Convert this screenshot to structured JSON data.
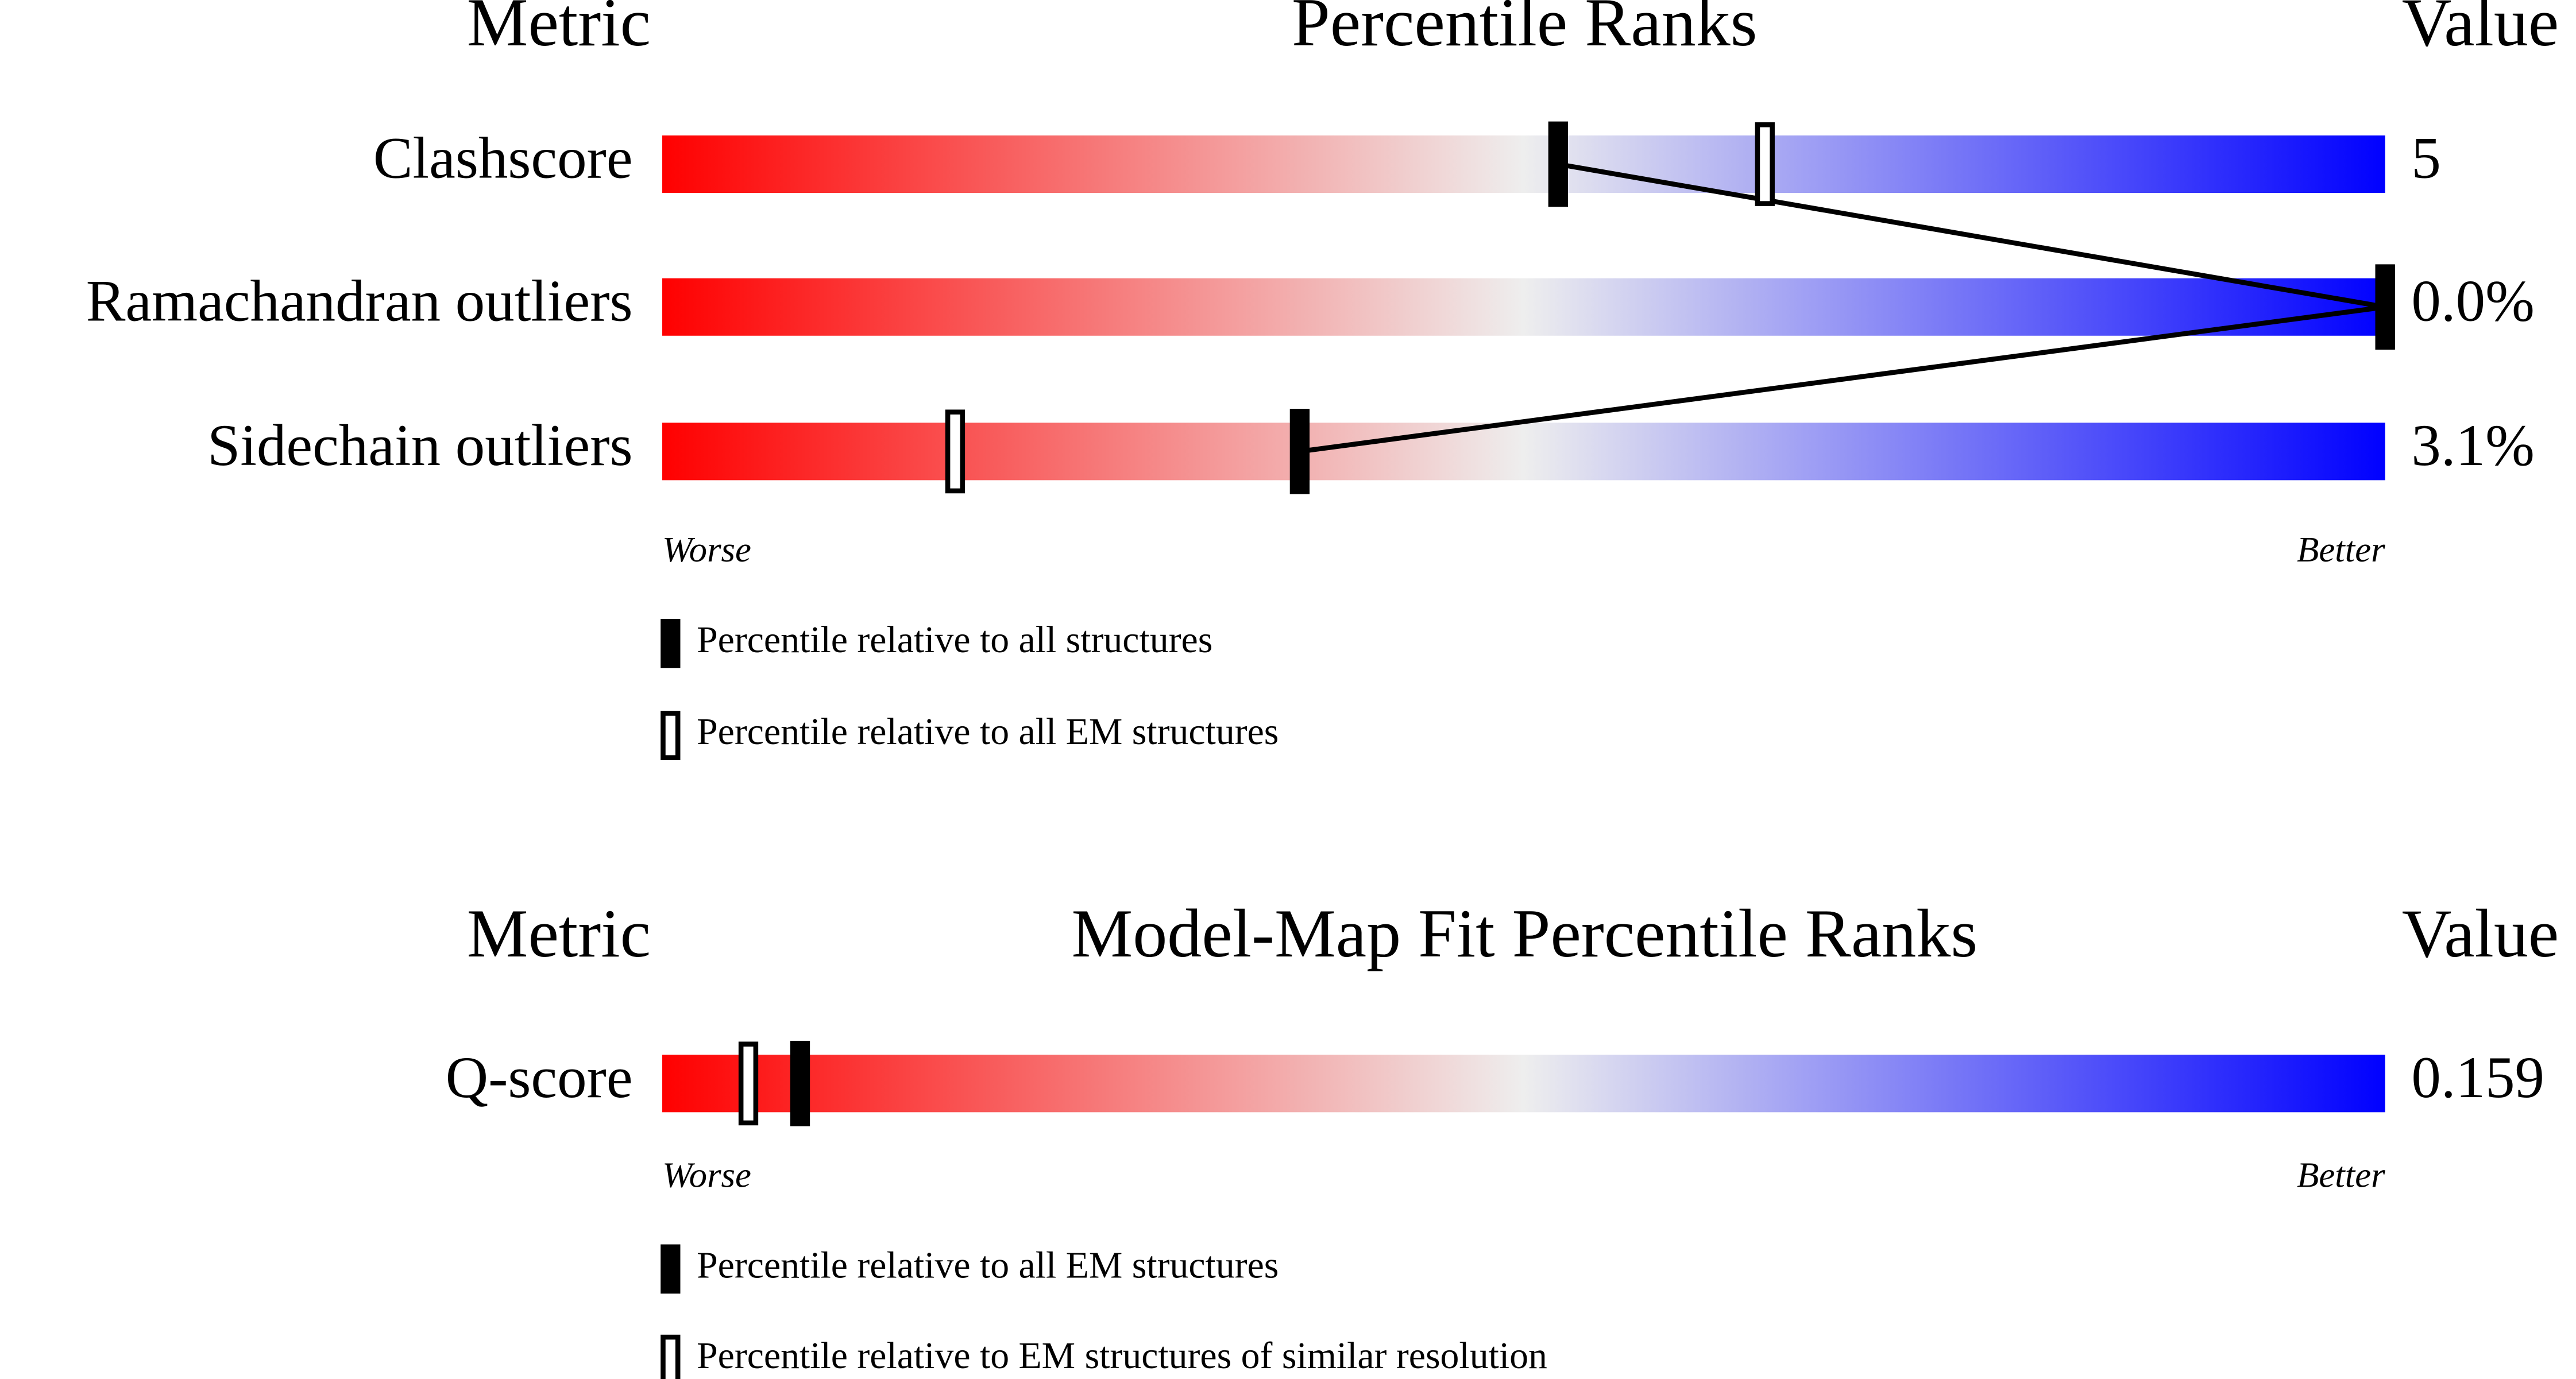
{
  "chart_data": [
    {
      "type": "percentile_slider",
      "header": {
        "metric": "Metric",
        "title": "Percentile Ranks",
        "value": "Value"
      },
      "xlim": [
        0,
        100
      ],
      "gradient": [
        "#ff0000",
        "#eeeeee",
        "#0000ff"
      ],
      "metrics": [
        "Clashscore",
        "Ramachandran outliers",
        "Sidechain outliers"
      ],
      "value_labels": [
        "5",
        "0.0%",
        "3.1%"
      ],
      "axis_labels": {
        "low": "Worse",
        "high": "Better"
      },
      "series": [
        {
          "name": "Percentile relative to all structures",
          "style": "filled",
          "color": "#000000",
          "values": [
            52,
            100,
            37
          ]
        },
        {
          "name": "Percentile relative to all EM structures",
          "style": "open",
          "color": "#000000",
          "values": [
            64,
            100,
            17
          ]
        }
      ]
    },
    {
      "type": "percentile_slider",
      "header": {
        "metric": "Metric",
        "title": "Model-Map Fit Percentile Ranks",
        "value": "Value"
      },
      "xlim": [
        0,
        100
      ],
      "gradient": [
        "#ff0000",
        "#eeeeee",
        "#0000ff"
      ],
      "metrics": [
        "Q-score"
      ],
      "value_labels": [
        "0.159"
      ],
      "axis_labels": {
        "low": "Worse",
        "high": "Better"
      },
      "series": [
        {
          "name": "Percentile relative to all EM structures",
          "style": "filled",
          "color": "#000000",
          "values": [
            8
          ]
        },
        {
          "name": "Percentile relative to EM structures of similar resolution",
          "style": "open",
          "color": "#000000",
          "values": [
            5
          ]
        }
      ]
    }
  ]
}
